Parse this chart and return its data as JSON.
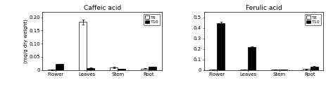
{
  "categories": [
    "Flower",
    "Leaves",
    "Stem",
    "Root"
  ],
  "caffeic": {
    "T8": [
      0.001,
      0.182,
      0.01,
      0.005
    ],
    "T10": [
      0.022,
      0.008,
      0.004,
      0.011
    ],
    "T8_err": [
      0.001,
      0.01,
      0.002,
      0.001
    ],
    "T10_err": [
      0.002,
      0.002,
      0.001,
      0.002
    ],
    "ylim": [
      0,
      0.22
    ],
    "yticks": [
      0.0,
      0.05,
      0.1,
      0.15,
      0.2
    ],
    "ytick_labels": [
      "0",
      "0.05",
      "0.10",
      "0.15",
      "0.20"
    ],
    "title": "Caffeic acid"
  },
  "ferulic": {
    "T8": [
      0.003,
      0.005,
      0.002,
      0.008
    ],
    "T10": [
      0.445,
      0.215,
      0.005,
      0.033
    ],
    "T8_err": [
      0.001,
      0.001,
      0.001,
      0.002
    ],
    "T10_err": [
      0.013,
      0.008,
      0.001,
      0.006
    ],
    "ylim": [
      0,
      0.55
    ],
    "yticks": [
      0.0,
      0.1,
      0.2,
      0.3,
      0.4,
      0.5
    ],
    "ytick_labels": [
      "0",
      "0.1",
      "0.2",
      "0.3",
      "0.4",
      "0.5"
    ],
    "title": "Ferulic acid"
  },
  "ylabel": "(mg/g dry weight)",
  "color_T8": "white",
  "color_T10": "black",
  "edgecolor": "black",
  "bar_width": 0.25,
  "legend_labels": [
    "T8",
    "T10"
  ]
}
